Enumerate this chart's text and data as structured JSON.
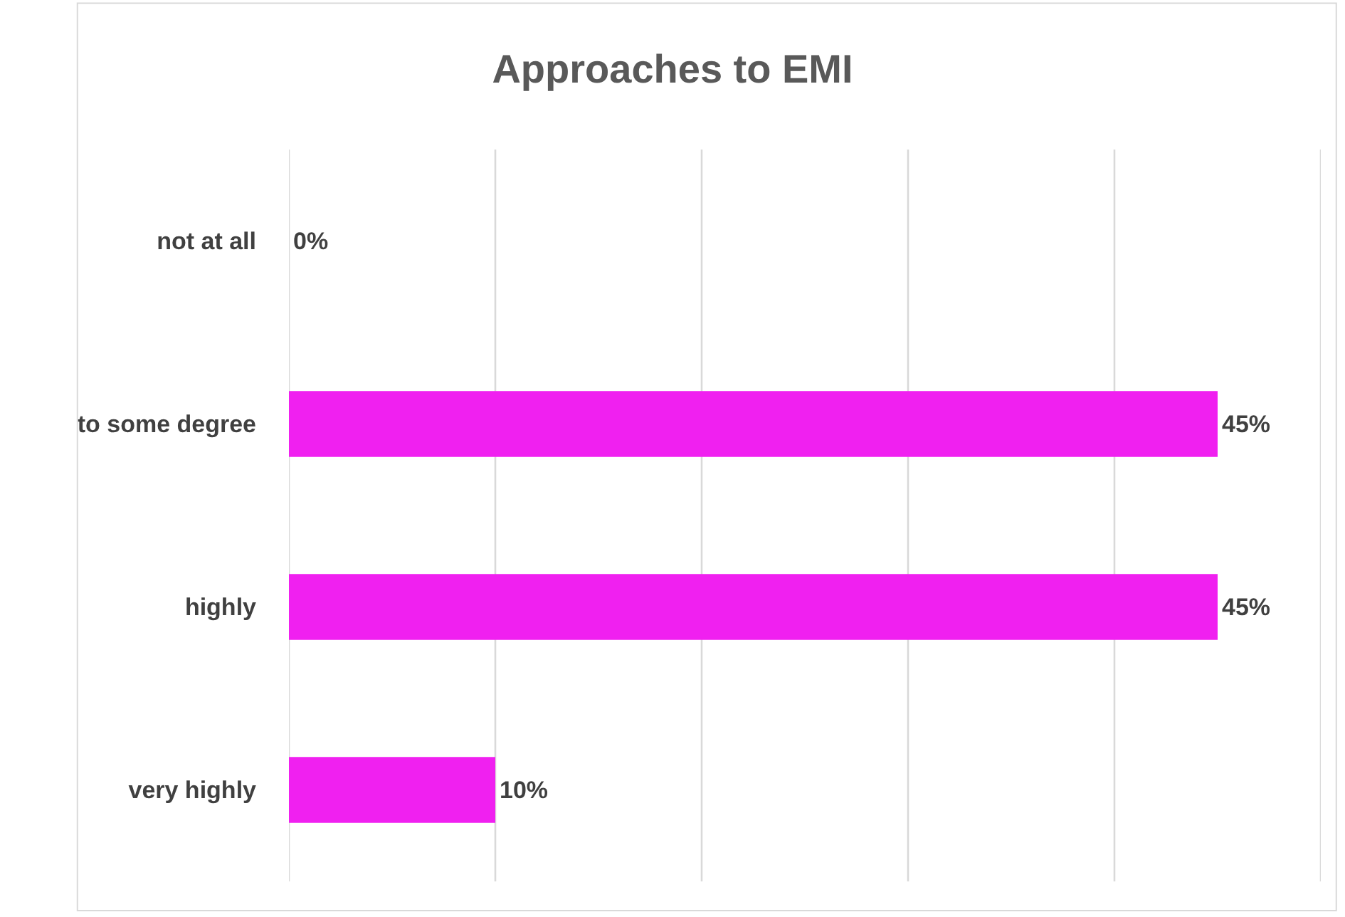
{
  "chart_data": {
    "type": "bar",
    "orientation": "horizontal",
    "title": "Approaches to EMI",
    "categories": [
      "not at all",
      "to some degree",
      "highly",
      "very highly"
    ],
    "values": [
      0,
      45,
      45,
      10
    ],
    "value_labels": [
      "0%",
      "45%",
      "45%",
      "10%"
    ],
    "color": "#f020f0",
    "xlim": [
      0,
      50
    ],
    "xticks": [
      {
        "value": 0,
        "label": null
      },
      {
        "value": 10,
        "label": null
      },
      {
        "value": 20,
        "label": null
      },
      {
        "value": 30,
        "label": null
      },
      {
        "value": 40,
        "label": null
      },
      {
        "value": 50,
        "label": null
      }
    ],
    "grid": "x",
    "tick_labels": "y"
  }
}
